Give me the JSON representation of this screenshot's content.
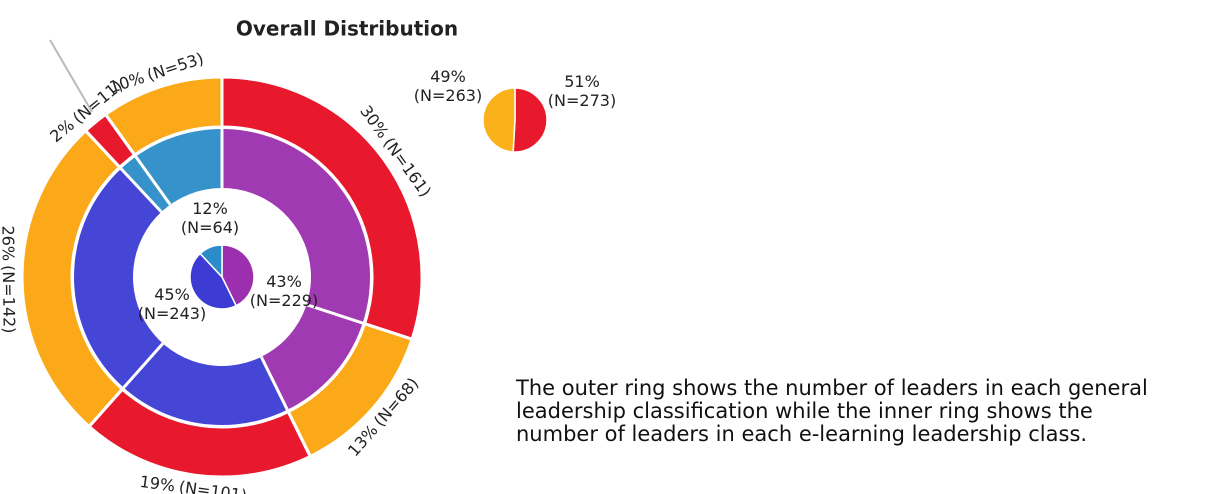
{
  "chart_data": {
    "type": "sunburst",
    "title": "Overall Distribution",
    "outer": {
      "values": [
        161,
        68,
        101,
        142,
        11,
        53
      ],
      "value_labels": [
        [
          "30%",
          "(N=161)"
        ],
        [
          "13%",
          "(N=68)"
        ],
        [
          "19%",
          "(N=101)"
        ],
        [
          "26%",
          "(N=142)"
        ],
        [
          "2%",
          "(N=11)"
        ],
        [
          "10%",
          "(N=53)"
        ]
      ],
      "colors": [
        "#e8192c",
        "#fba919",
        "#e8192c",
        "#fba919",
        "#e8192c",
        "#fba919"
      ]
    },
    "inner": {
      "values": [
        229,
        243,
        64
      ],
      "value_labels": [
        [
          "43%",
          "(N=229)"
        ],
        [
          "45%",
          "(N=243)"
        ],
        [
          "12%",
          "(N=64)"
        ]
      ],
      "colors": [
        "#9b2fae",
        "#3c3cd4",
        "#2a8cc8"
      ]
    },
    "summary": {
      "values": [
        273,
        263
      ],
      "value_labels": [
        [
          "51%",
          "(N=273)"
        ],
        [
          "49%",
          "(N=263)"
        ]
      ],
      "colors": [
        "#e8192c",
        "#fbb21a"
      ]
    },
    "note": [
      "The outer ring shows the number of leaders in each general",
      "leadership classification while the inner ring shows the",
      "number of leaders in each e-learning leadership class."
    ]
  }
}
